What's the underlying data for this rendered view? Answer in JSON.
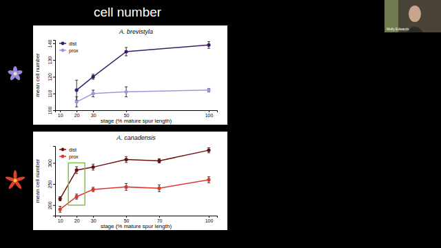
{
  "title": "cell number",
  "presenter": "Molly Edwards",
  "chart_data": [
    {
      "type": "line",
      "title": "A. brevistyla",
      "x_label": "stage (% mature spur length)",
      "y_label": "mean cell number",
      "x": [
        20,
        30,
        50,
        100
      ],
      "xlim": [
        7,
        105
      ],
      "xticks": [
        10,
        20,
        30,
        50,
        100
      ],
      "ylim": [
        100,
        142
      ],
      "yticks": [
        100,
        110,
        120,
        130,
        140
      ],
      "legend": "top-left",
      "grid": false,
      "series": [
        {
          "name": "dist",
          "color": "#3b1a6b",
          "marker": "circle",
          "line_style": "solid",
          "values": [
            112,
            120,
            135,
            139
          ],
          "errors": [
            6,
            1.5,
            2.5,
            2
          ]
        },
        {
          "name": "prox",
          "color": "#a88fe0",
          "marker": "circle",
          "line_style": "solid",
          "values": [
            105,
            110,
            111,
            112
          ],
          "errors": [
            3,
            2,
            3,
            1
          ]
        }
      ]
    },
    {
      "type": "line",
      "title": "A. canadensis",
      "x_label": "stage (% mature spur length)",
      "y_label": "mean cell number",
      "x": [
        10,
        20,
        30,
        50,
        70,
        100
      ],
      "xlim": [
        7,
        105
      ],
      "xticks": [
        10,
        20,
        30,
        50,
        70,
        100
      ],
      "ylim": [
        175,
        340
      ],
      "yticks": [
        200,
        250,
        300
      ],
      "legend": "top-left",
      "grid": false,
      "highlight": {
        "x": [
          15,
          25
        ],
        "y": [
          200,
          300
        ]
      },
      "series": [
        {
          "name": "dist",
          "color": "#6e0f0f",
          "marker": "circle",
          "line_style": "solid",
          "values": [
            215,
            283,
            290,
            308,
            305,
            330
          ],
          "errors": [
            5,
            8,
            7,
            7,
            5,
            6
          ]
        },
        {
          "name": "prox",
          "color": "#e0352b",
          "marker": "circle",
          "line_style": "solid",
          "values": [
            190,
            220,
            237,
            243,
            240,
            260
          ],
          "errors": [
            7,
            6,
            5,
            8,
            8,
            7
          ]
        }
      ]
    }
  ]
}
